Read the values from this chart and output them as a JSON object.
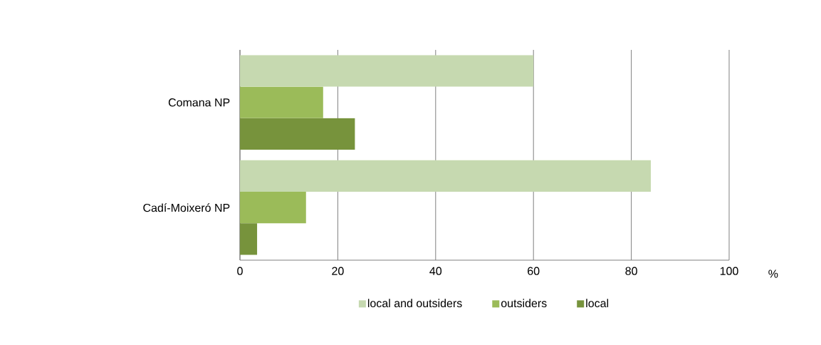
{
  "chart_data": {
    "type": "bar",
    "orientation": "horizontal",
    "xlabel": "%",
    "categories": [
      "Comana NP",
      "Cadí-Moixeró NP"
    ],
    "series": [
      {
        "name": "local and outsiders",
        "color": "#c6d9b0",
        "values": [
          60,
          84
        ]
      },
      {
        "name": "outsiders",
        "color": "#9bbb59",
        "values": [
          17,
          13.5
        ]
      },
      {
        "name": "local",
        "color": "#77933c",
        "values": [
          23.5,
          3.5
        ]
      }
    ],
    "xlim": [
      0,
      100
    ],
    "xticks": [
      0,
      20,
      40,
      60,
      80,
      100
    ],
    "grid": "x",
    "legend": "bottom"
  }
}
